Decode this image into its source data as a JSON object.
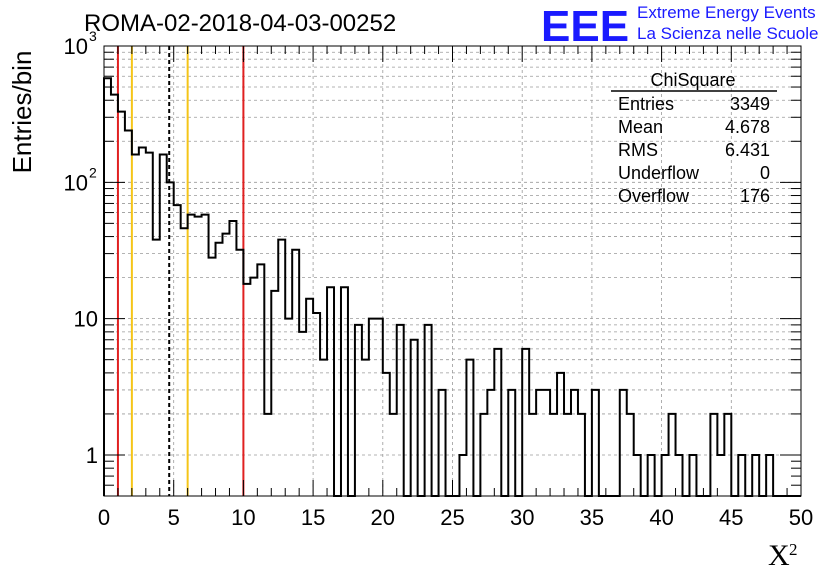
{
  "chart_data": {
    "type": "bar",
    "title": "ROMA-02-2018-04-03-00252",
    "xlabel": "X",
    "xlabel_superscript": "2",
    "ylabel": "Entries/bin",
    "x_range": [
      0,
      50
    ],
    "y_scale": "log",
    "y_range": [
      0.5,
      1000
    ],
    "grid": true,
    "bin_width": 0.5,
    "x_ticks": [
      "0",
      "5",
      "10",
      "15",
      "20",
      "25",
      "30",
      "35",
      "40",
      "45",
      "50"
    ],
    "y_ticks": [
      {
        "value": 1,
        "label": "1"
      },
      {
        "value": 10,
        "label": "10"
      },
      {
        "value": 100,
        "label": "10",
        "exponent": "2"
      },
      {
        "value": 1000,
        "label": "10",
        "exponent": "3"
      }
    ],
    "values": [
      580,
      440,
      330,
      240,
      160,
      180,
      165,
      38,
      160,
      100,
      68,
      46,
      58,
      56,
      58,
      28,
      36,
      42,
      52,
      32,
      18,
      20,
      25,
      2,
      16,
      38,
      10,
      32,
      8,
      14,
      11,
      5,
      17,
      0,
      17,
      0,
      9,
      5,
      10,
      10,
      4,
      2,
      9,
      0,
      7,
      0,
      9,
      0,
      3,
      0.5,
      0,
      1,
      5,
      0.5,
      2,
      3,
      6,
      0.5,
      3,
      0.5,
      6,
      2,
      3,
      3,
      2,
      4,
      2,
      3,
      2,
      0,
      3,
      0.5,
      0,
      0.5,
      3,
      2,
      1,
      0,
      1,
      0,
      1,
      2,
      1,
      0,
      1,
      0,
      0,
      2,
      1,
      2,
      0,
      1,
      0,
      1,
      0,
      1,
      0,
      0,
      0,
      0
    ],
    "vertical_lines": [
      {
        "x": 1,
        "color": "#e02020",
        "style": "solid",
        "name": "red-line-1"
      },
      {
        "x": 2,
        "color": "#f5c518",
        "style": "solid",
        "name": "yellow-line-2"
      },
      {
        "x": 4.678,
        "color": "#000000",
        "style": "dashed",
        "name": "mean-dashed-line"
      },
      {
        "x": 6,
        "color": "#f5c518",
        "style": "solid",
        "name": "yellow-line-6"
      },
      {
        "x": 10,
        "color": "#e02020",
        "style": "solid",
        "name": "red-line-10"
      }
    ],
    "stats_box": {
      "title": "ChiSquare",
      "rows": [
        {
          "label": "Entries",
          "value": "3349"
        },
        {
          "label": "Mean",
          "value": "4.678"
        },
        {
          "label": "RMS",
          "value": "6.431"
        },
        {
          "label": "Underflow",
          "value": "0"
        },
        {
          "label": "Overflow",
          "value": "176"
        }
      ]
    }
  },
  "logo": {
    "big": "EEE",
    "line1": "Extreme Energy Events",
    "line2": "La Scienza nelle Scuole",
    "color": "#1a1aff"
  }
}
